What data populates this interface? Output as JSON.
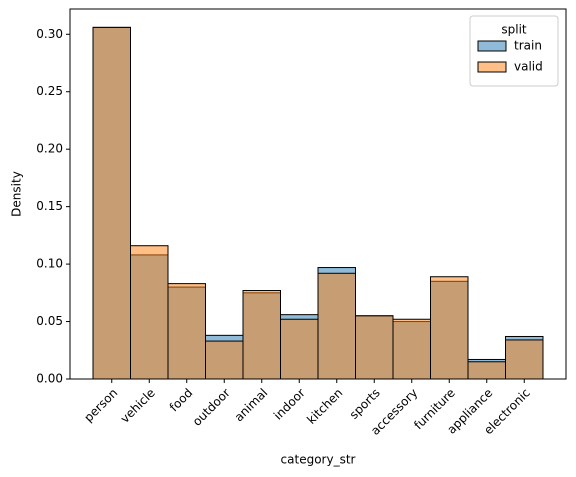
{
  "chart_data": {
    "type": "bar",
    "xlabel": "category_str",
    "ylabel": "Density",
    "categories": [
      "person",
      "vehicle",
      "food",
      "outdoor",
      "animal",
      "indoor",
      "kitchen",
      "sports",
      "accessory",
      "furniture",
      "appliance",
      "electronic"
    ],
    "series": [
      {
        "name": "train",
        "color": "#1f77b4",
        "values": [
          0.306,
          0.108,
          0.08,
          0.038,
          0.075,
          0.056,
          0.097,
          0.055,
          0.05,
          0.085,
          0.017,
          0.037
        ]
      },
      {
        "name": "valid",
        "color": "#ff7f0e",
        "values": [
          0.306,
          0.116,
          0.083,
          0.033,
          0.077,
          0.052,
          0.092,
          0.055,
          0.052,
          0.089,
          0.015,
          0.034
        ]
      }
    ],
    "legend_title": "split",
    "legend_loc": "upper right",
    "ylim": [
      0,
      0.322
    ],
    "yticks": [
      {
        "value": 0,
        "label": "0.00"
      },
      {
        "value": 0.05,
        "label": "0.05"
      },
      {
        "value": 0.1,
        "label": "0.10"
      },
      {
        "value": 0.15,
        "label": "0.15"
      },
      {
        "value": 0.2,
        "label": "0.20"
      },
      {
        "value": 0.25,
        "label": "0.25"
      },
      {
        "value": 0.3,
        "label": "0.30"
      }
    ]
  }
}
